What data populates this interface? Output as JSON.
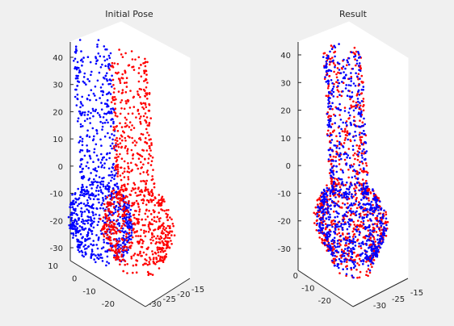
{
  "window": {
    "background": "#f0f0f0"
  },
  "chart_data": [
    {
      "type": "scatter",
      "title": "Initial Pose",
      "xlabel": "",
      "ylabel": "",
      "zlabel": "",
      "xlim": [
        -35,
        -12
      ],
      "ylim": [
        -22,
        12
      ],
      "zlim": [
        -35,
        45
      ],
      "z_ticks": [
        40,
        30,
        20,
        10,
        0,
        -10,
        -20,
        -30
      ],
      "y_ticks": [
        10,
        0,
        -10,
        -20
      ],
      "x_ticks": [
        -30,
        -25,
        -20,
        -15
      ],
      "grid": false,
      "series": [
        {
          "color": "#0000ff",
          "description": "blue point cloud (model), shifted left",
          "shape": {
            "centerX": -27,
            "centerY": -5,
            "shaftRadius": 4,
            "bulbRadius": 9,
            "bulbZ": -20,
            "topZ": 44,
            "bottomZ": -34,
            "count": 900
          }
        },
        {
          "color": "#ff0000",
          "description": "red point cloud (scene), shifted right",
          "shape": {
            "centerX": -20,
            "centerY": -5,
            "shaftRadius": 4,
            "bulbRadius": 10,
            "bulbZ": -22,
            "topZ": 40,
            "bottomZ": -38,
            "count": 900
          }
        }
      ]
    },
    {
      "type": "scatter",
      "title": "Result",
      "xlabel": "",
      "ylabel": "",
      "zlabel": "",
      "xlim": [
        -35,
        -12
      ],
      "ylim": [
        -22,
        12
      ],
      "zlim": [
        -35,
        45
      ],
      "z_ticks": [
        40,
        30,
        20,
        10,
        0,
        -10,
        -20,
        -30
      ],
      "y_ticks": [
        0,
        -10,
        -20
      ],
      "x_ticks": [
        -30,
        -25,
        -15
      ],
      "grid": false,
      "series": [
        {
          "color": "#ff0000",
          "description": "red point cloud (scene), aligned",
          "shape": {
            "centerX": -22,
            "centerY": -5,
            "shaftRadius": 4,
            "bulbRadius": 10,
            "bulbZ": -20,
            "topZ": 41,
            "bottomZ": -38,
            "count": 800
          }
        },
        {
          "color": "#0000ff",
          "description": "blue point cloud (model), aligned on top",
          "shape": {
            "centerX": -22,
            "centerY": -5,
            "shaftRadius": 4,
            "bulbRadius": 9.5,
            "bulbZ": -20,
            "topZ": 41,
            "bottomZ": -38,
            "count": 900
          }
        }
      ]
    }
  ]
}
